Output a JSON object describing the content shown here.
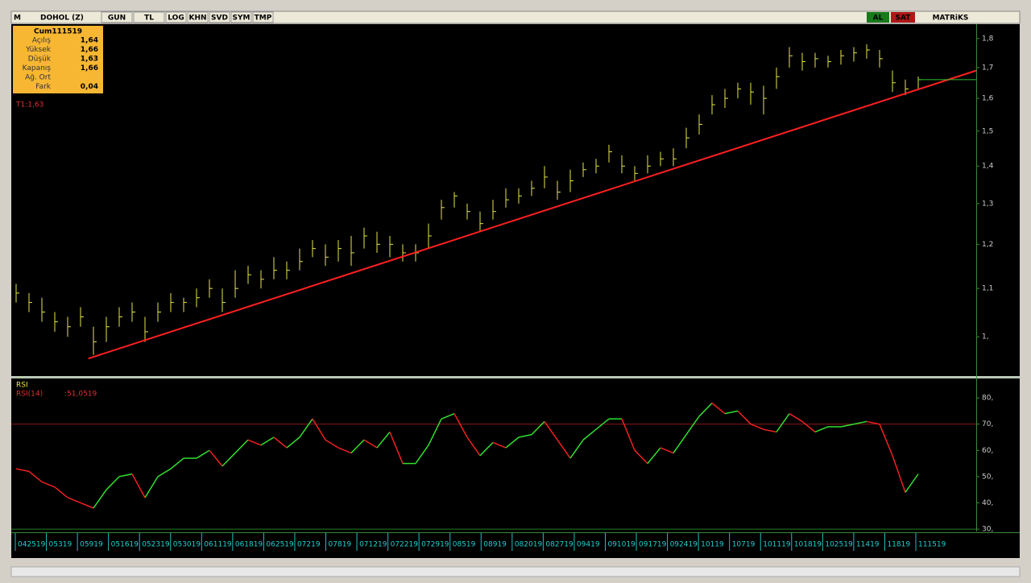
{
  "toolbar": {
    "logo": "M",
    "symbol": "DOHOL (Z)",
    "buttons": [
      "GUN",
      "TL",
      "LOG",
      "KHN",
      "SVD",
      "SYM",
      "TMP"
    ],
    "buy": "AL",
    "sell": "SAT",
    "brand": "MATRiKS"
  },
  "info_box": {
    "date": "Cum111519",
    "rows": [
      [
        "Açılış",
        "1,64"
      ],
      [
        "Yüksek",
        "1,66"
      ],
      [
        "Düşük",
        "1,63"
      ],
      [
        "Kapanış",
        "1,66"
      ],
      [
        "Ağ. Ort",
        ""
      ],
      [
        "Fark",
        "0,04"
      ]
    ]
  },
  "chart_data": [
    {
      "type": "ohlc",
      "annotation": "T1:1,63",
      "log_scale": true,
      "color": "#e6e64a",
      "ylim": [
        0.927,
        1.846
      ],
      "yticks": [
        {
          "value": 1.8,
          "label": "1,8"
        },
        {
          "value": 1.7,
          "label": "1,7"
        },
        {
          "value": 1.6,
          "label": "1,6"
        },
        {
          "value": 1.5,
          "label": "1,5"
        },
        {
          "value": 1.4,
          "label": "1,4"
        },
        {
          "value": 1.3,
          "label": "1,3"
        },
        {
          "value": 1.2,
          "label": "1,2"
        },
        {
          "value": 1.1,
          "label": "1,1"
        },
        {
          "value": 1,
          "label": "1,"
        }
      ],
      "high": [
        1.11,
        1.09,
        1.08,
        1.05,
        1.04,
        1.06,
        1.02,
        1.04,
        1.06,
        1.07,
        1.04,
        1.07,
        1.09,
        1.08,
        1.1,
        1.12,
        1.1,
        1.14,
        1.15,
        1.14,
        1.17,
        1.16,
        1.19,
        1.21,
        1.2,
        1.21,
        1.22,
        1.24,
        1.23,
        1.22,
        1.2,
        1.2,
        1.25,
        1.31,
        1.33,
        1.3,
        1.28,
        1.31,
        1.34,
        1.34,
        1.36,
        1.4,
        1.36,
        1.39,
        1.41,
        1.42,
        1.46,
        1.43,
        1.4,
        1.43,
        1.44,
        1.45,
        1.51,
        1.55,
        1.61,
        1.63,
        1.65,
        1.65,
        1.64,
        1.7,
        1.77,
        1.75,
        1.75,
        1.74,
        1.76,
        1.77,
        1.78,
        1.76,
        1.69,
        1.66,
        1.67
      ],
      "low": [
        1.07,
        1.05,
        1.03,
        1.01,
        1.0,
        1.02,
        0.965,
        0.99,
        1.02,
        1.03,
        0.99,
        1.03,
        1.05,
        1.05,
        1.06,
        1.08,
        1.05,
        1.08,
        1.11,
        1.1,
        1.12,
        1.12,
        1.14,
        1.17,
        1.15,
        1.16,
        1.15,
        1.19,
        1.18,
        1.17,
        1.16,
        1.16,
        1.19,
        1.26,
        1.29,
        1.26,
        1.23,
        1.26,
        1.29,
        1.3,
        1.32,
        1.34,
        1.31,
        1.33,
        1.37,
        1.38,
        1.41,
        1.38,
        1.36,
        1.38,
        1.4,
        1.4,
        1.45,
        1.49,
        1.55,
        1.57,
        1.6,
        1.58,
        1.55,
        1.63,
        1.7,
        1.69,
        1.7,
        1.7,
        1.71,
        1.72,
        1.73,
        1.7,
        1.62,
        1.61,
        1.63
      ],
      "close": [
        1.09,
        1.07,
        1.05,
        1.03,
        1.02,
        1.04,
        0.99,
        1.02,
        1.04,
        1.05,
        1.01,
        1.05,
        1.07,
        1.07,
        1.08,
        1.1,
        1.07,
        1.1,
        1.13,
        1.12,
        1.14,
        1.14,
        1.16,
        1.19,
        1.17,
        1.19,
        1.18,
        1.22,
        1.2,
        1.2,
        1.18,
        1.18,
        1.22,
        1.29,
        1.32,
        1.28,
        1.25,
        1.28,
        1.31,
        1.32,
        1.34,
        1.37,
        1.33,
        1.36,
        1.39,
        1.4,
        1.44,
        1.4,
        1.38,
        1.4,
        1.42,
        1.42,
        1.48,
        1.52,
        1.58,
        1.6,
        1.63,
        1.62,
        1.6,
        1.67,
        1.74,
        1.72,
        1.73,
        1.72,
        1.74,
        1.75,
        1.76,
        1.73,
        1.65,
        1.63,
        1.66
      ],
      "trend_line": {
        "x": [
          5.6,
          74.5
        ],
        "y": [
          0.958,
          1.69
        ]
      },
      "last_price": 1.66,
      "x_tick_labels": [
        "042519",
        "05319",
        "05919",
        "051619",
        "052319",
        "053019",
        "061119",
        "061819",
        "062519",
        "07219",
        "07819",
        "071219",
        "072219",
        "072919",
        "08519",
        "08919",
        "082019",
        "082719",
        "09419",
        "091019",
        "091719",
        "092419",
        "10119",
        "10719",
        "101119",
        "101819",
        "102519",
        "11419",
        "11819",
        "111519"
      ]
    },
    {
      "type": "line",
      "title": "RSI",
      "series_label": "RSI(14)",
      "value_label": ":51,0519",
      "ylim": [
        29.1,
        87.4
      ],
      "yticks": [
        {
          "value": 80,
          "label": "80,"
        },
        {
          "value": 70,
          "label": "70,"
        },
        {
          "value": 60,
          "label": "60,"
        },
        {
          "value": 50,
          "label": "50,"
        },
        {
          "value": 40,
          "label": "40,"
        },
        {
          "value": 30,
          "label": "30,"
        }
      ],
      "reference_lines": [
        70,
        30
      ],
      "values": [
        53,
        52,
        48,
        46,
        42,
        40,
        38,
        45,
        50,
        51,
        42,
        50,
        53,
        57,
        57,
        60,
        54,
        59,
        64,
        62,
        65,
        61,
        65,
        72,
        64,
        61,
        59,
        64,
        61,
        67,
        55,
        55,
        62,
        72,
        74,
        65,
        58,
        63,
        61,
        65,
        66,
        71,
        64,
        57,
        64,
        68,
        72,
        72,
        60,
        55,
        61,
        59,
        66,
        73,
        78,
        74,
        75,
        70,
        68,
        67,
        74,
        71,
        67,
        69,
        69,
        70,
        71,
        70,
        58,
        44,
        51
      ]
    }
  ]
}
